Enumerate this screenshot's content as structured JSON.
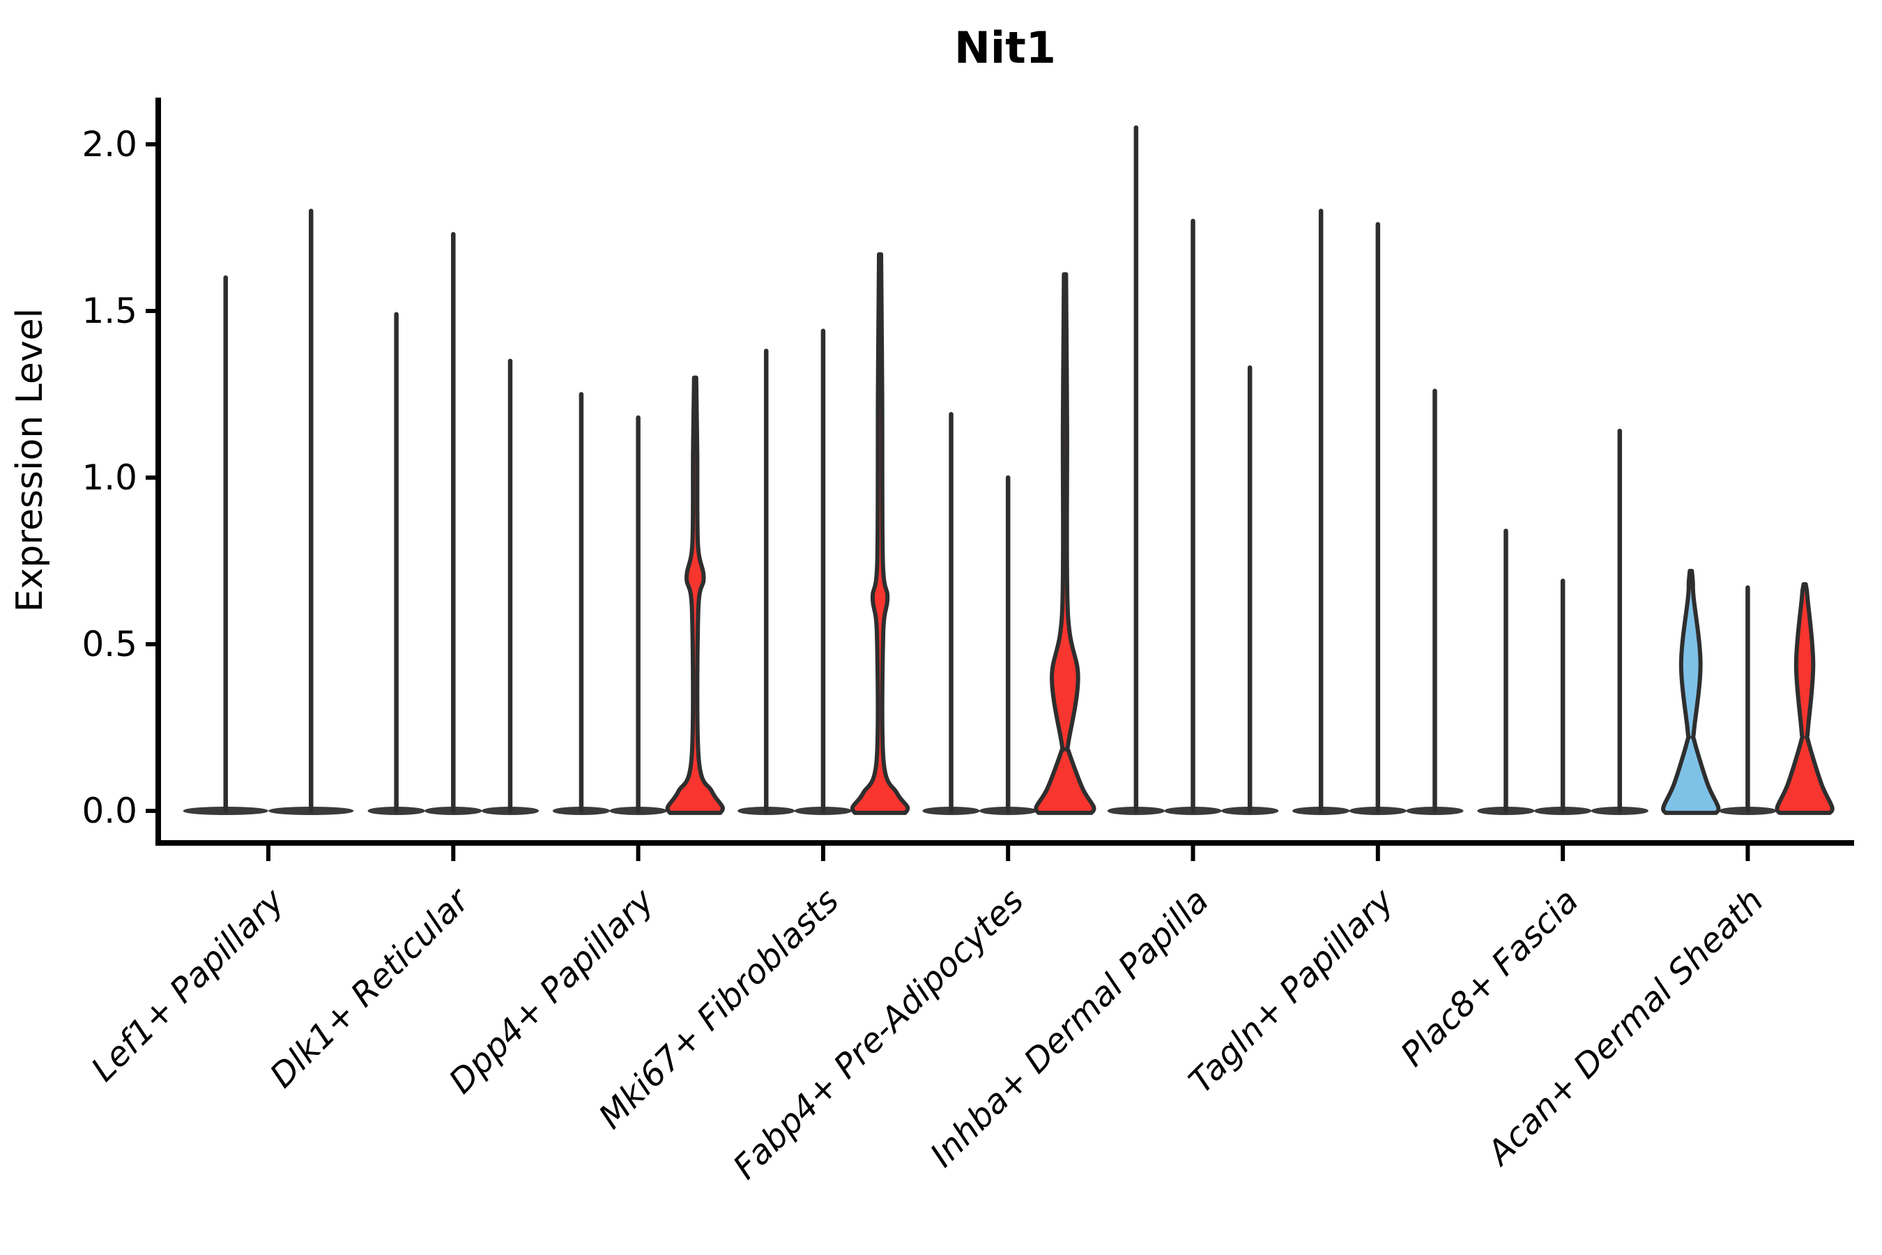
{
  "title": "Nit1",
  "ylabel": "Expression Level",
  "colors": {
    "red": "#F8352E",
    "blue": "#7FC2E8",
    "violin_line": "#2E2E2E",
    "baseline_fill": "#3A3A3A",
    "axis": "#000000"
  },
  "chart_data": {
    "type": "violin",
    "title": "Nit1",
    "xlabel": "",
    "ylabel": "Expression Level",
    "ylim": [
      0.0,
      2.1
    ],
    "yticks": [
      0.0,
      0.5,
      1.0,
      1.5,
      2.0
    ],
    "ytick_labels": [
      "0.0",
      "0.5",
      "1.0",
      "1.5",
      "2.0"
    ],
    "grid": false,
    "legend": "none",
    "groups": [
      {
        "label": "Lef1+ Papillary",
        "violins": [
          {
            "max": 1.6,
            "fill": "none"
          },
          {
            "max": 1.8,
            "fill": "none"
          }
        ]
      },
      {
        "label": "Dlk1+ Reticular",
        "violins": [
          {
            "max": 1.49,
            "fill": "none"
          },
          {
            "max": 1.73,
            "fill": "none"
          },
          {
            "max": 1.35,
            "fill": "none"
          }
        ]
      },
      {
        "label": "Dpp4+ Papillary",
        "violins": [
          {
            "max": 1.25,
            "fill": "none"
          },
          {
            "max": 1.18,
            "fill": "none"
          },
          {
            "max": 1.3,
            "fill": "red",
            "bulge": {
              "center": 0.7,
              "half": 0.1,
              "width": 0.3
            },
            "base": {
              "height": 0.13,
              "width": 1.0
            }
          }
        ]
      },
      {
        "label": "Mki67+ Fibroblasts",
        "violins": [
          {
            "max": 1.38,
            "fill": "none"
          },
          {
            "max": 1.44,
            "fill": "none"
          },
          {
            "max": 1.67,
            "fill": "red",
            "bulge": {
              "center": 0.64,
              "half": 0.11,
              "width": 0.26
            },
            "base": {
              "height": 0.12,
              "width": 1.0
            }
          }
        ]
      },
      {
        "label": "Fabp4+ Pre-Adipocytes",
        "violins": [
          {
            "max": 1.19,
            "fill": "none"
          },
          {
            "max": 1.0,
            "fill": "none"
          },
          {
            "max": 1.61,
            "fill": "red",
            "bulge": {
              "center": 0.4,
              "half": 0.2,
              "width": 0.46
            },
            "base": {
              "height": 0.15,
              "width": 1.05
            }
          }
        ]
      },
      {
        "label": "Inhba+ Dermal Papilla",
        "violins": [
          {
            "max": 2.05,
            "fill": "none"
          },
          {
            "max": 1.77,
            "fill": "none"
          },
          {
            "max": 1.33,
            "fill": "none"
          }
        ]
      },
      {
        "label": "Tagln+ Papillary",
        "violins": [
          {
            "max": 1.8,
            "fill": "none"
          },
          {
            "max": 1.76,
            "fill": "none"
          },
          {
            "max": 1.26,
            "fill": "none"
          }
        ]
      },
      {
        "label": "Plac8+ Fascia",
        "violins": [
          {
            "max": 0.84,
            "fill": "none"
          },
          {
            "max": 0.69,
            "fill": "none"
          },
          {
            "max": 1.14,
            "fill": "none"
          }
        ]
      },
      {
        "label": "Acan+ Dermal Sheath",
        "violins": [
          {
            "max": 0.72,
            "fill": "blue",
            "bulge": {
              "center": 0.44,
              "half": 0.2,
              "width": 0.34
            },
            "base": {
              "height": 0.18,
              "width": 1.0
            }
          },
          {
            "max": 0.67,
            "fill": "none"
          },
          {
            "max": 0.68,
            "fill": "red",
            "bulge": {
              "center": 0.44,
              "half": 0.2,
              "width": 0.3
            },
            "base": {
              "height": 0.18,
              "width": 1.0
            }
          }
        ]
      }
    ]
  }
}
